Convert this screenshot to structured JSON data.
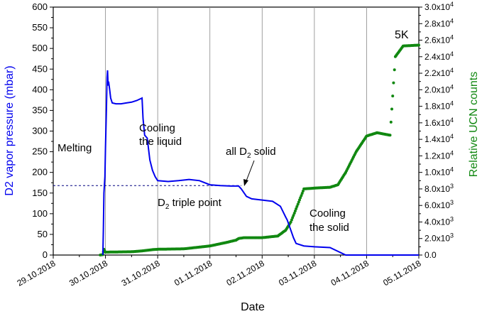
{
  "chart_data": {
    "type": "line",
    "xlabel": "Date",
    "ylabel_left": "D2 vapor pressure (mbar)",
    "ylabel_right": "Relative UCN counts",
    "x_ticks": [
      "29.10.2018",
      "30.10.2018",
      "31.10.2018",
      "01.11.2018",
      "02.11.2018",
      "03.11.2018",
      "04.11.2018",
      "05.11.2018"
    ],
    "xlim_days": [
      29,
      36
    ],
    "y_left_ticks": [
      "0",
      "50",
      "100",
      "150",
      "200",
      "250",
      "300",
      "350",
      "400",
      "450",
      "500",
      "550",
      "600"
    ],
    "ylim_left": [
      0,
      600
    ],
    "y_right_ticks": [
      "0.0",
      "2.0x10^3",
      "4.0x10^3",
      "6.0x10^3",
      "8.0x10^3",
      "1.0x10^4",
      "1.2x10^4",
      "1.4x10^4",
      "1.6x10^4",
      "1.8x10^4",
      "2.0x10^4",
      "2.2x10^4",
      "2.4x10^4",
      "2.6x10^4",
      "2.8x10^4",
      "3.0x10^4"
    ],
    "ylim_right": [
      0,
      30000
    ],
    "colors": {
      "pressure": "#0000ee",
      "ucn": "#118811",
      "axis_left": "#0000ee",
      "axis_right": "#118811"
    },
    "grid": "vertical lines at major x ticks",
    "triple_point_line_mbar": 168,
    "series": [
      {
        "axis": "left",
        "points": [
          [
            29.95,
            0
          ],
          [
            29.96,
            60
          ],
          [
            29.97,
            150
          ],
          [
            29.98,
            170
          ],
          [
            29.99,
            190
          ],
          [
            30.0,
            260
          ],
          [
            30.02,
            360
          ],
          [
            30.03,
            430
          ],
          [
            30.04,
            447
          ],
          [
            30.05,
            410
          ],
          [
            30.06,
            420
          ],
          [
            30.08,
            400
          ],
          [
            30.1,
            380
          ],
          [
            30.13,
            368
          ],
          [
            30.2,
            366
          ],
          [
            30.3,
            366
          ],
          [
            30.4,
            368
          ],
          [
            30.5,
            370
          ],
          [
            30.6,
            374
          ],
          [
            30.7,
            380
          ],
          [
            30.72,
            330
          ],
          [
            30.75,
            290
          ],
          [
            30.8,
            283
          ],
          [
            30.85,
            230
          ],
          [
            30.9,
            205
          ],
          [
            30.95,
            190
          ],
          [
            31.0,
            180
          ],
          [
            31.2,
            178
          ],
          [
            31.4,
            180
          ],
          [
            31.6,
            183
          ],
          [
            31.8,
            180
          ],
          [
            32.0,
            170
          ],
          [
            32.2,
            168
          ],
          [
            32.4,
            167
          ],
          [
            32.55,
            167
          ],
          [
            32.6,
            160
          ],
          [
            32.7,
            142
          ],
          [
            32.8,
            136
          ],
          [
            33.0,
            133
          ],
          [
            33.2,
            130
          ],
          [
            33.35,
            118
          ],
          [
            33.4,
            105
          ],
          [
            33.45,
            92
          ],
          [
            33.48,
            85
          ],
          [
            33.55,
            60
          ],
          [
            33.6,
            42
          ],
          [
            33.65,
            28
          ],
          [
            33.8,
            22
          ],
          [
            34.0,
            20
          ],
          [
            34.3,
            18
          ],
          [
            34.6,
            0
          ],
          [
            36.0,
            0
          ]
        ]
      },
      {
        "axis": "right",
        "points": [
          [
            29.9,
            0
          ],
          [
            29.95,
            50
          ],
          [
            29.97,
            700
          ],
          [
            29.99,
            400
          ],
          [
            30.0,
            350
          ],
          [
            30.5,
            400
          ],
          [
            30.7,
            500
          ],
          [
            30.9,
            650
          ],
          [
            31.0,
            700
          ],
          [
            31.5,
            750
          ],
          [
            32.0,
            1100
          ],
          [
            32.3,
            1500
          ],
          [
            32.5,
            1800
          ],
          [
            32.55,
            2000
          ],
          [
            32.65,
            2100
          ],
          [
            33.0,
            2100
          ],
          [
            33.3,
            2300
          ],
          [
            33.45,
            3000
          ],
          [
            33.55,
            4000
          ],
          [
            33.65,
            5600
          ],
          [
            33.75,
            7200
          ],
          [
            33.8,
            8000
          ],
          [
            34.0,
            8100
          ],
          [
            34.3,
            8200
          ],
          [
            34.45,
            8500
          ],
          [
            34.6,
            10000
          ],
          [
            34.8,
            12500
          ],
          [
            35.0,
            14400
          ],
          [
            35.2,
            14800
          ],
          [
            35.45,
            14500
          ],
          [
            35.55,
            24000
          ],
          [
            35.7,
            25300
          ],
          [
            36.0,
            25400
          ]
        ]
      }
    ],
    "annotations": [
      "Melting",
      "Cooling",
      "the liquid",
      "all D2 solid",
      "D2 triple point",
      "Cooling",
      "the solid",
      "5K"
    ]
  }
}
